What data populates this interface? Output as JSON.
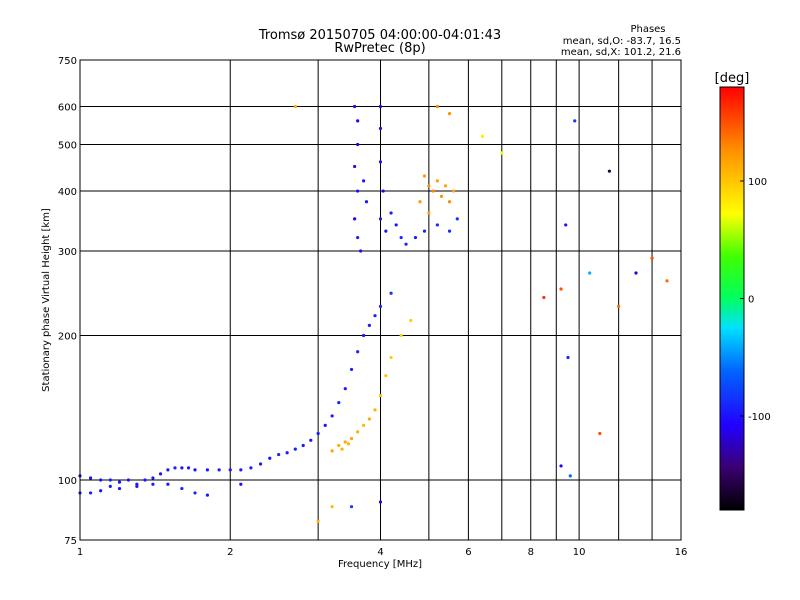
{
  "chart_data": {
    "type": "scatter",
    "title": "Tromsø 20150705 04:00:00-04:01:43",
    "subtitle": "RwPretec (8p)",
    "xlabel": "Frequency [MHz]",
    "ylabel": "Stationary phase Virtual Height [km]",
    "x_scale": "log",
    "y_scale": "log",
    "xlim": [
      1,
      16
    ],
    "ylim": [
      75,
      750
    ],
    "x_ticks": [
      1,
      2,
      4,
      6,
      8,
      10,
      16
    ],
    "x_tick_labels": [
      "1",
      "2",
      "4",
      "6",
      "8",
      "10",
      "16"
    ],
    "x_minor_ticks": [
      3,
      5,
      7,
      9,
      12,
      14
    ],
    "y_ticks": [
      75,
      100,
      200,
      300,
      400,
      500,
      600,
      750
    ],
    "y_tick_labels": [
      "75",
      "100",
      "200",
      "300",
      "400",
      "500",
      "600",
      "750"
    ],
    "grid": true,
    "phase_stats": {
      "heading": "Phases",
      "line1": "mean, sd,O: -83.7, 16.5",
      "line2": "mean, sd,X: 101.2, 21.6"
    },
    "colorbar": {
      "label": "[deg]",
      "range": [
        -180,
        180
      ],
      "ticks": [
        100,
        0,
        -100
      ],
      "tick_labels": [
        "100",
        "0",
        "-100"
      ],
      "colormap": "rainbow"
    },
    "series": [
      {
        "role": "low-frequency O-trace",
        "points": [
          [
            1.0,
            102,
            -95
          ],
          [
            1.05,
            101,
            -100
          ],
          [
            1.1,
            100,
            -96
          ],
          [
            1.15,
            100,
            -92
          ],
          [
            1.2,
            99,
            -98
          ],
          [
            1.25,
            100,
            -100
          ],
          [
            1.3,
            98,
            -94
          ],
          [
            1.35,
            100,
            -97
          ],
          [
            1.4,
            101,
            -95
          ],
          [
            1.45,
            103,
            -100
          ],
          [
            1.5,
            105,
            -96
          ],
          [
            1.55,
            106,
            -92
          ],
          [
            1.6,
            106,
            -98
          ],
          [
            1.65,
            106,
            -95
          ],
          [
            1.7,
            105,
            -100
          ],
          [
            1.8,
            105,
            -96
          ],
          [
            1.9,
            105,
            -94
          ],
          [
            2.0,
            105,
            -97
          ],
          [
            2.1,
            105,
            -95
          ],
          [
            2.2,
            106,
            -92
          ],
          [
            2.3,
            108,
            -95
          ],
          [
            2.4,
            111,
            -98
          ],
          [
            2.5,
            113,
            -93
          ],
          [
            2.6,
            114,
            -96
          ],
          [
            2.7,
            116,
            -92
          ],
          [
            2.8,
            118,
            -95
          ],
          [
            2.9,
            121,
            -98
          ],
          [
            3.0,
            125,
            -94
          ],
          [
            3.1,
            130,
            -100
          ],
          [
            3.2,
            136,
            -96
          ],
          [
            3.3,
            145,
            -92
          ],
          [
            3.4,
            155,
            -98
          ],
          [
            3.5,
            170,
            -95
          ],
          [
            3.6,
            185,
            -90
          ],
          [
            3.7,
            200,
            -96
          ],
          [
            3.8,
            210,
            -92
          ],
          [
            3.9,
            220,
            -94
          ],
          [
            4.0,
            230,
            -90
          ],
          [
            4.2,
            245,
            -85
          ]
        ]
      },
      {
        "role": "lower O-trace branch",
        "points": [
          [
            1.0,
            94,
            -92
          ],
          [
            1.05,
            94,
            -95
          ],
          [
            1.1,
            95,
            -98
          ],
          [
            1.15,
            97,
            -94
          ],
          [
            1.2,
            96,
            -100
          ],
          [
            1.3,
            97,
            -96
          ],
          [
            1.4,
            98,
            -93
          ],
          [
            1.5,
            98,
            -97
          ],
          [
            1.6,
            96,
            -94
          ],
          [
            1.7,
            94,
            -90
          ],
          [
            1.8,
            93,
            -96
          ]
        ]
      },
      {
        "role": "X-trace",
        "points": [
          [
            3.2,
            115,
            115
          ],
          [
            3.3,
            118,
            112
          ],
          [
            3.35,
            116,
            110
          ],
          [
            3.4,
            120,
            114
          ],
          [
            3.45,
            119,
            108
          ],
          [
            3.5,
            122,
            115
          ],
          [
            3.6,
            126,
            110
          ],
          [
            3.7,
            130,
            106
          ],
          [
            3.8,
            134,
            112
          ],
          [
            3.9,
            140,
            108
          ],
          [
            4.0,
            150,
            104
          ],
          [
            4.1,
            165,
            100
          ],
          [
            4.2,
            180,
            96
          ],
          [
            4.4,
            200,
            92
          ],
          [
            4.6,
            215,
            96
          ]
        ]
      },
      {
        "role": "F-region echoes",
        "points": [
          [
            3.55,
            600,
            -110
          ],
          [
            3.6,
            560,
            -106
          ],
          [
            3.6,
            500,
            -112
          ],
          [
            3.55,
            450,
            -100
          ],
          [
            3.6,
            400,
            -104
          ],
          [
            3.55,
            350,
            -108
          ],
          [
            3.6,
            320,
            -96
          ],
          [
            3.65,
            300,
            -102
          ],
          [
            3.7,
            420,
            -98
          ],
          [
            3.75,
            380,
            -95
          ],
          [
            4.0,
            600,
            -108
          ],
          [
            4.0,
            540,
            -104
          ],
          [
            4.0,
            460,
            -100
          ],
          [
            4.05,
            400,
            -106
          ],
          [
            4.0,
            350,
            -98
          ],
          [
            4.1,
            330,
            -96
          ],
          [
            4.2,
            360,
            -92
          ],
          [
            4.3,
            340,
            -100
          ],
          [
            4.4,
            320,
            -90
          ],
          [
            4.5,
            310,
            -94
          ],
          [
            4.7,
            320,
            -96
          ],
          [
            4.9,
            330,
            -92
          ],
          [
            5.2,
            340,
            -90
          ],
          [
            5.5,
            330,
            -88
          ],
          [
            5.7,
            350,
            -84
          ]
        ]
      },
      {
        "role": "F-region X echoes",
        "points": [
          [
            4.9,
            430,
            120
          ],
          [
            5.0,
            410,
            125
          ],
          [
            5.1,
            400,
            130
          ],
          [
            5.2,
            420,
            118
          ],
          [
            5.3,
            390,
            124
          ],
          [
            5.4,
            410,
            115
          ],
          [
            5.5,
            380,
            128
          ],
          [
            5.6,
            400,
            120
          ],
          [
            4.8,
            380,
            122
          ],
          [
            5.0,
            360,
            116
          ],
          [
            5.2,
            600,
            130
          ],
          [
            5.5,
            580,
            124
          ],
          [
            6.4,
            520,
            80
          ],
          [
            7.0,
            480,
            70
          ]
        ]
      },
      {
        "role": "scattered points",
        "points": [
          [
            8.5,
            240,
            160
          ],
          [
            9.2,
            250,
            150
          ],
          [
            9.5,
            180,
            -90
          ],
          [
            9.4,
            340,
            -100
          ],
          [
            9.8,
            560,
            -80
          ],
          [
            10.5,
            270,
            -40
          ],
          [
            11.5,
            440,
            -160
          ],
          [
            12.0,
            230,
            140
          ],
          [
            13.0,
            270,
            -120
          ],
          [
            14.0,
            290,
            150
          ],
          [
            15.0,
            260,
            140
          ],
          [
            11.0,
            125,
            150
          ],
          [
            9.6,
            102,
            -60
          ],
          [
            9.2,
            107,
            -110
          ],
          [
            2.7,
            600,
            110
          ],
          [
            2.1,
            98,
            -100
          ],
          [
            3.0,
            82,
            110
          ],
          [
            3.2,
            88,
            105
          ],
          [
            3.5,
            88,
            -80
          ],
          [
            4.0,
            90,
            -110
          ]
        ]
      }
    ]
  }
}
